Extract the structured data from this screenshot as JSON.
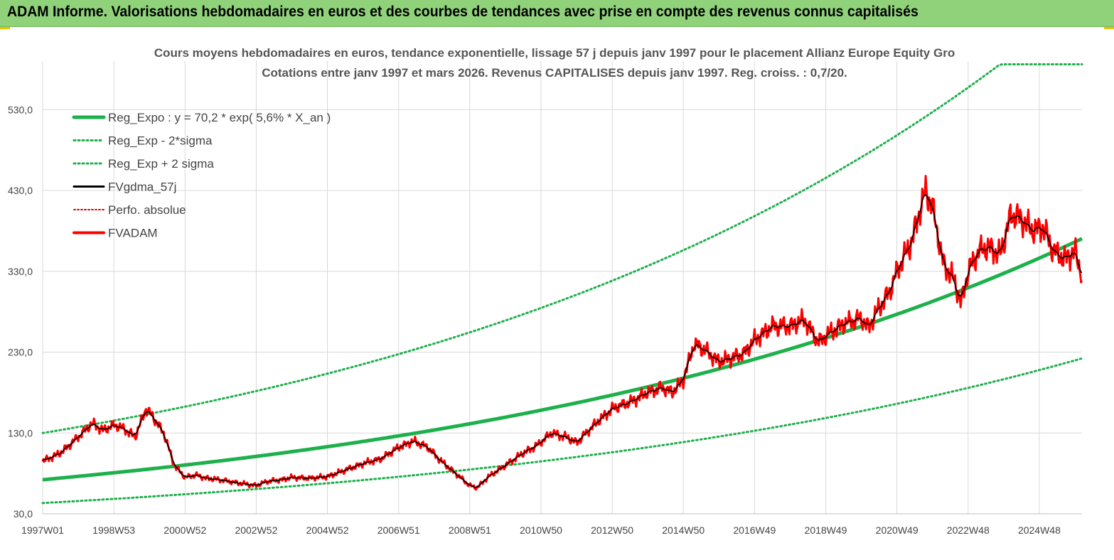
{
  "header": {
    "title": "ADAM Informe. Valorisations hebdomadaires en euros et des courbes de tendances avec prise en compte des revenus connus capitalisés"
  },
  "chart_data": {
    "type": "line",
    "title": "Cours moyens hebdomadaires en euros, tendance exponentielle, lissage 57 j depuis janv 1997 pour le placement Allianz Europe Equity Gro",
    "subtitle": "Cotations entre janv 1997 et mars 2026. Revenus  CAPITALISES  depuis janv 1997. Reg. croiss. : 0,7/20.",
    "xlabel": "",
    "ylabel": "",
    "x_range": [
      1997.0,
      2026.2
    ],
    "ylim": [
      30,
      590
    ],
    "y_ticks": [
      30,
      130,
      230,
      330,
      430,
      530
    ],
    "y_tick_labels": [
      "30,0",
      "130,0",
      "230,0",
      "330,0",
      "430,0",
      "530,0"
    ],
    "x_tick_labels": [
      "1997W01",
      "1998W53",
      "2000W52",
      "2002W52",
      "2004W52",
      "2006W51",
      "2008W51",
      "2010W50",
      "2012W50",
      "2014W50",
      "2016W49",
      "2018W49",
      "2020W49",
      "2022W48",
      "2024W48"
    ],
    "x_ticks": [
      1997.0,
      1999.0,
      2001.0,
      2003.0,
      2005.0,
      2007.0,
      2009.0,
      2011.0,
      2013.0,
      2015.0,
      2017.0,
      2019.0,
      2021.0,
      2023.0,
      2025.0
    ],
    "grid": true,
    "legend_position": "top-left",
    "colors": {
      "regression": "#1db04b",
      "bands": "#1db04b",
      "smooth": "#000000",
      "perfo": "#e00000",
      "fvadam": "#ff0000",
      "grid": "#d9d9d9"
    },
    "series": [
      {
        "name": "Reg_Expo : y = 70,2 * exp( 5,6% *  X_an )",
        "kind": "reg",
        "a": 70.2,
        "b": 0.056
      },
      {
        "name": "Reg_Exp - 2*sigma",
        "kind": "band_low",
        "factor": 0.6
      },
      {
        "name": "Reg_Exp + 2 sigma",
        "kind": "band_high",
        "factor": 1.8,
        "cap": 586
      },
      {
        "name": "FVgdma_57j",
        "kind": "smooth"
      },
      {
        "name": "Perfo. absolue",
        "kind": "perfo"
      },
      {
        "name": "FVADAM",
        "kind": "price",
        "x": [
          1997.0,
          1997.5,
          1998.0,
          1998.4,
          1998.7,
          1999.0,
          1999.3,
          1999.6,
          1999.9,
          2000.1,
          2000.4,
          2000.7,
          2001.0,
          2001.3,
          2001.6,
          2002.0,
          2002.5,
          2003.0,
          2003.3,
          2003.7,
          2004.0,
          2004.5,
          2005.0,
          2005.5,
          2006.0,
          2006.5,
          2007.0,
          2007.4,
          2007.8,
          2008.2,
          2008.6,
          2009.0,
          2009.2,
          2009.5,
          2010.0,
          2010.5,
          2010.9,
          2011.3,
          2011.7,
          2012.0,
          2012.5,
          2013.0,
          2013.5,
          2014.0,
          2014.4,
          2014.7,
          2015.0,
          2015.3,
          2015.6,
          2016.0,
          2016.3,
          2016.7,
          2017.0,
          2017.5,
          2018.0,
          2018.4,
          2018.8,
          2019.0,
          2019.5,
          2020.0,
          2020.2,
          2020.5,
          2020.8,
          2021.0,
          2021.4,
          2021.8,
          2022.0,
          2022.3,
          2022.6,
          2022.8,
          2023.0,
          2023.3,
          2023.6,
          2023.9,
          2024.2,
          2024.5,
          2024.8,
          2025.1,
          2025.4,
          2025.7,
          2026.0,
          2026.2
        ],
        "values": [
          95,
          105,
          125,
          142,
          133,
          140,
          135,
          125,
          160,
          150,
          130,
          90,
          75,
          78,
          74,
          72,
          68,
          65,
          70,
          72,
          75,
          74,
          76,
          84,
          92,
          98,
          112,
          120,
          113,
          95,
          80,
          65,
          62,
          75,
          90,
          105,
          115,
          130,
          125,
          118,
          140,
          160,
          168,
          180,
          186,
          180,
          196,
          240,
          233,
          218,
          222,
          228,
          245,
          262,
          262,
          270,
          242,
          250,
          265,
          272,
          260,
          285,
          305,
          330,
          365,
          430,
          410,
          340,
          320,
          290,
          330,
          355,
          360,
          350,
          400,
          395,
          380,
          385,
          355,
          345,
          355,
          325
        ]
      }
    ]
  }
}
